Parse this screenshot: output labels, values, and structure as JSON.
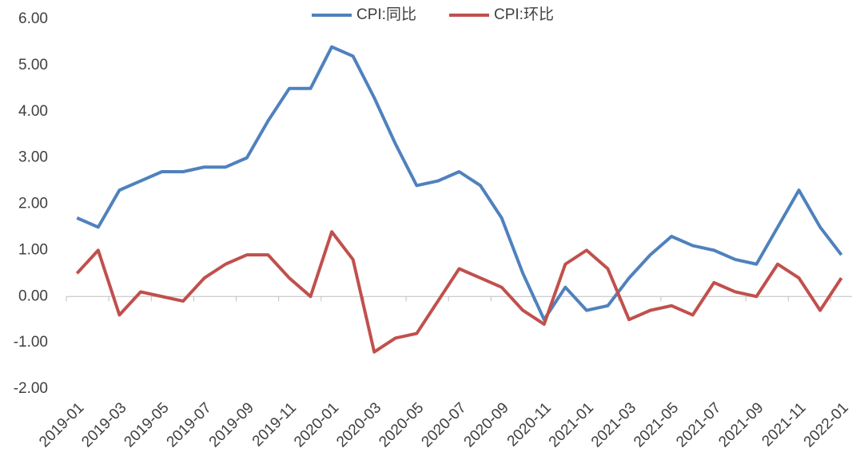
{
  "chart_data": {
    "type": "line",
    "categories": [
      "2019-01",
      null,
      "2019-03",
      null,
      "2019-05",
      null,
      "2019-07",
      null,
      "2019-09",
      null,
      "2019-11",
      null,
      "2020-01",
      null,
      "2020-03",
      null,
      "2020-05",
      null,
      "2020-07",
      null,
      "2020-09",
      null,
      "2020-11",
      null,
      "2021-01",
      null,
      "2021-03",
      null,
      "2021-05",
      null,
      "2021-07",
      null,
      "2021-09",
      null,
      "2021-11",
      null,
      "2022-01"
    ],
    "series": [
      {
        "name": "CPI:同比",
        "color": "#4f81bd",
        "values": [
          1.7,
          1.5,
          2.3,
          2.5,
          2.7,
          2.7,
          2.8,
          2.8,
          3.0,
          3.8,
          4.5,
          4.5,
          5.4,
          5.2,
          4.3,
          3.3,
          2.4,
          2.5,
          2.7,
          2.4,
          1.7,
          0.5,
          -0.5,
          0.2,
          -0.3,
          -0.2,
          0.4,
          0.9,
          1.3,
          1.1,
          1.0,
          0.8,
          0.7,
          1.5,
          2.3,
          1.5,
          0.9
        ]
      },
      {
        "name": "CPI:环比",
        "color": "#c0504d",
        "values": [
          0.5,
          1.0,
          -0.4,
          0.1,
          0.0,
          -0.1,
          0.4,
          0.7,
          0.9,
          0.9,
          0.4,
          0.0,
          1.4,
          0.8,
          -1.2,
          -0.9,
          -0.8,
          -0.1,
          0.6,
          0.4,
          0.2,
          -0.3,
          -0.6,
          0.7,
          1.0,
          0.6,
          -0.5,
          -0.3,
          -0.2,
          -0.4,
          0.3,
          0.1,
          0.0,
          0.7,
          0.4,
          -0.3,
          0.4
        ]
      }
    ],
    "ylim": [
      -2,
      6
    ],
    "yticks": [
      {
        "value": -2,
        "label": "-2.00"
      },
      {
        "value": -1,
        "label": "-1.00"
      },
      {
        "value": 0,
        "label": "0.00"
      },
      {
        "value": 1,
        "label": "1.00"
      },
      {
        "value": 2,
        "label": "2.00"
      },
      {
        "value": 3,
        "label": "3.00"
      },
      {
        "value": 4,
        "label": "4.00"
      },
      {
        "value": 5,
        "label": "5.00"
      },
      {
        "value": 6,
        "label": "6.00"
      }
    ],
    "grid": false,
    "legend": "top"
  }
}
